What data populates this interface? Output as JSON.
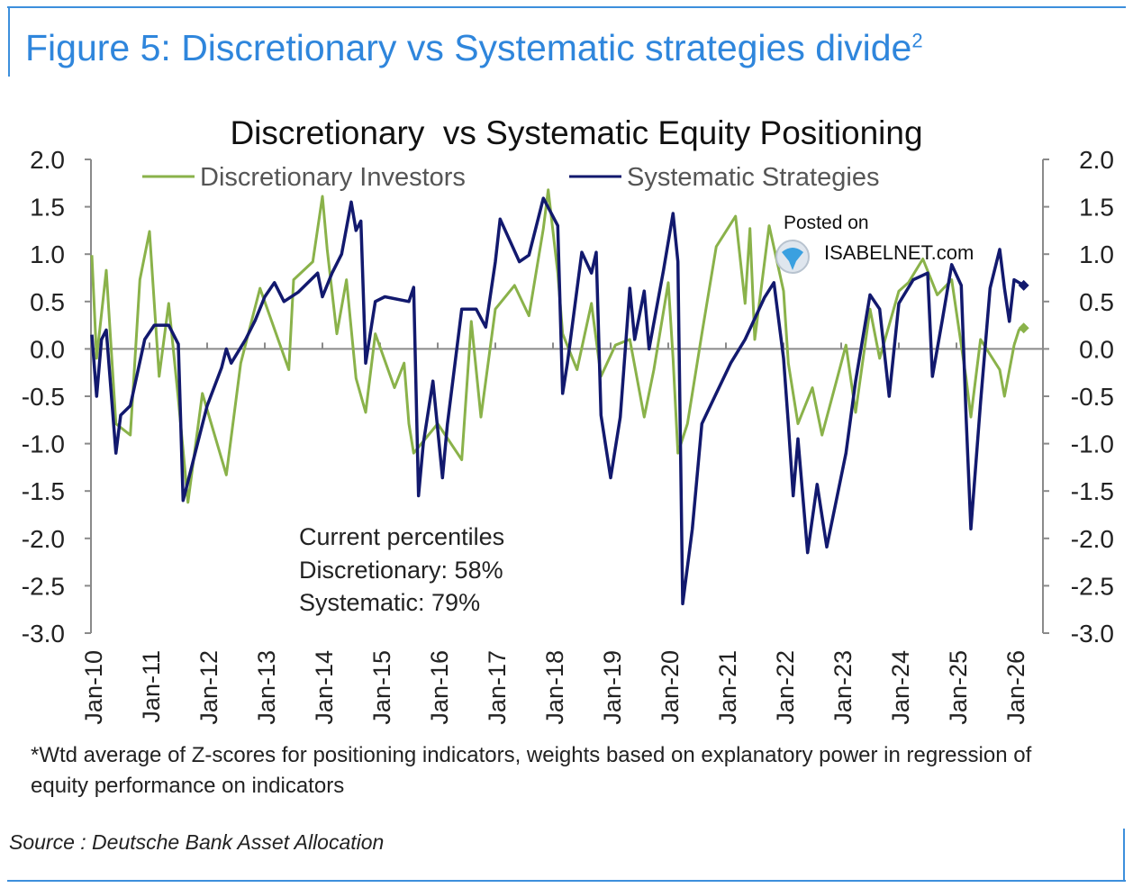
{
  "figure": {
    "title": "Figure 5: Discretionary vs Systematic strategies divide",
    "title_superscript": "2",
    "footnote": "*Wtd average of Z-scores for positioning indicators, weights based on explanatory power in regression of equity performance on indicators",
    "source": "Source : Deutsche Bank Asset Allocation",
    "accent_color": "#2f86dc"
  },
  "watermark": {
    "line1": "Posted on",
    "line2": "ISABELNET.com"
  },
  "chart_data": {
    "type": "line",
    "title": "Discretionary  vs Systematic Equity Positioning",
    "xlabel": "",
    "ylabel": "",
    "ylim": [
      -3.0,
      2.0
    ],
    "y_ticks": [
      "2.0",
      "1.5",
      "1.0",
      "0.5",
      "0.0",
      "-0.5",
      "-1.0",
      "-1.5",
      "-2.0",
      "-2.5",
      "-3.0"
    ],
    "y_axis_both_sides": true,
    "x_ticks": [
      "Jan-10",
      "Jan-11",
      "Jan-12",
      "Jan-13",
      "Jan-14",
      "Jan-15",
      "Jan-16",
      "Jan-17",
      "Jan-18",
      "Jan-19",
      "Jan-20",
      "Jan-21",
      "Jan-22",
      "Jan-23",
      "Jan-24",
      "Jan-25",
      "Jan-26"
    ],
    "grid": false,
    "legend_position": "top",
    "annotation": [
      "Current percentiles",
      "Discretionary: 58%",
      "Systematic: 79%"
    ],
    "series": [
      {
        "name": "Discretionary Investors",
        "color": "#8ab24a",
        "points": [
          [
            "2010-01",
            0.99
          ],
          [
            "2010-02",
            -0.1
          ],
          [
            "2010-04",
            0.83
          ],
          [
            "2010-06",
            -0.79
          ],
          [
            "2010-09",
            -0.91
          ],
          [
            "2010-11",
            0.73
          ],
          [
            "2011-01",
            1.24
          ],
          [
            "2011-03",
            -0.29
          ],
          [
            "2011-05",
            0.48
          ],
          [
            "2011-07",
            -0.53
          ],
          [
            "2011-09",
            -1.62
          ],
          [
            "2011-12",
            -0.47
          ],
          [
            "2012-05",
            -1.33
          ],
          [
            "2012-08",
            -0.15
          ],
          [
            "2012-12",
            0.64
          ],
          [
            "2013-06",
            -0.22
          ],
          [
            "2013-07",
            0.73
          ],
          [
            "2013-11",
            0.92
          ],
          [
            "2014-01",
            1.61
          ],
          [
            "2014-02",
            1.05
          ],
          [
            "2014-04",
            0.16
          ],
          [
            "2014-06",
            0.73
          ],
          [
            "2014-08",
            -0.31
          ],
          [
            "2014-10",
            -0.67
          ],
          [
            "2014-12",
            0.16
          ],
          [
            "2015-04",
            -0.41
          ],
          [
            "2015-06",
            -0.15
          ],
          [
            "2015-07",
            -0.79
          ],
          [
            "2015-08",
            -1.1
          ],
          [
            "2016-01",
            -0.79
          ],
          [
            "2016-06",
            -1.17
          ],
          [
            "2016-08",
            0.29
          ],
          [
            "2016-10",
            -0.72
          ],
          [
            "2017-01",
            0.42
          ],
          [
            "2017-05",
            0.67
          ],
          [
            "2017-08",
            0.35
          ],
          [
            "2017-11",
            1.27
          ],
          [
            "2017-12",
            1.68
          ],
          [
            "2018-02",
            0.8
          ],
          [
            "2018-03",
            0.16
          ],
          [
            "2018-06",
            -0.22
          ],
          [
            "2018-09",
            0.48
          ],
          [
            "2018-11",
            -0.29
          ],
          [
            "2019-02",
            0.04
          ],
          [
            "2019-05",
            0.1
          ],
          [
            "2019-08",
            -0.72
          ],
          [
            "2019-10",
            -0.22
          ],
          [
            "2020-01",
            0.7
          ],
          [
            "2020-02",
            -0.1
          ],
          [
            "2020-03",
            -1.1
          ],
          [
            "2020-05",
            -0.79
          ],
          [
            "2020-08",
            0.16
          ],
          [
            "2020-11",
            1.08
          ],
          [
            "2021-03",
            1.4
          ],
          [
            "2021-05",
            0.48
          ],
          [
            "2021-06",
            1.27
          ],
          [
            "2021-07",
            0.1
          ],
          [
            "2021-10",
            1.3
          ],
          [
            "2022-01",
            0.61
          ],
          [
            "2022-02",
            -0.15
          ],
          [
            "2022-04",
            -0.79
          ],
          [
            "2022-07",
            -0.41
          ],
          [
            "2022-09",
            -0.91
          ],
          [
            "2022-12",
            -0.34
          ],
          [
            "2023-02",
            0.04
          ],
          [
            "2023-04",
            -0.67
          ],
          [
            "2023-07",
            0.42
          ],
          [
            "2023-09",
            -0.1
          ],
          [
            "2024-01",
            0.61
          ],
          [
            "2024-03",
            0.7
          ],
          [
            "2024-06",
            0.95
          ],
          [
            "2024-09",
            0.57
          ],
          [
            "2024-12",
            0.73
          ],
          [
            "2025-03",
            -0.31
          ],
          [
            "2025-04",
            -0.72
          ],
          [
            "2025-06",
            0.1
          ],
          [
            "2025-10",
            -0.22
          ],
          [
            "2025-11",
            -0.5
          ],
          [
            "2026-01",
            0.04
          ],
          [
            "2026-02",
            0.2
          ],
          [
            "2026-03",
            0.22
          ]
        ]
      },
      {
        "name": "Systematic Strategies",
        "color": "#12196e",
        "points": [
          [
            "2010-01",
            0.15
          ],
          [
            "2010-02",
            -0.5
          ],
          [
            "2010-03",
            0.1
          ],
          [
            "2010-04",
            0.2
          ],
          [
            "2010-06",
            -1.1
          ],
          [
            "2010-07",
            -0.7
          ],
          [
            "2010-09",
            -0.6
          ],
          [
            "2010-12",
            0.1
          ],
          [
            "2011-02",
            0.25
          ],
          [
            "2011-05",
            0.25
          ],
          [
            "2011-07",
            0.05
          ],
          [
            "2011-08",
            -1.6
          ],
          [
            "2011-09",
            -1.4
          ],
          [
            "2011-11",
            -1.0
          ],
          [
            "2012-01",
            -0.6
          ],
          [
            "2012-04",
            -0.2
          ],
          [
            "2012-05",
            0.0
          ],
          [
            "2012-06",
            -0.15
          ],
          [
            "2012-09",
            0.1
          ],
          [
            "2012-11",
            0.3
          ],
          [
            "2013-01",
            0.55
          ],
          [
            "2013-03",
            0.7
          ],
          [
            "2013-05",
            0.5
          ],
          [
            "2013-08",
            0.6
          ],
          [
            "2013-12",
            0.8
          ],
          [
            "2014-01",
            0.55
          ],
          [
            "2014-03",
            0.8
          ],
          [
            "2014-05",
            1.0
          ],
          [
            "2014-07",
            1.55
          ],
          [
            "2014-08",
            1.25
          ],
          [
            "2014-09",
            1.35
          ],
          [
            "2014-10",
            -0.15
          ],
          [
            "2014-12",
            0.5
          ],
          [
            "2015-02",
            0.55
          ],
          [
            "2015-07",
            0.5
          ],
          [
            "2015-08",
            0.65
          ],
          [
            "2015-09",
            -1.55
          ],
          [
            "2015-10",
            -1.0
          ],
          [
            "2015-12",
            -0.34
          ],
          [
            "2016-02",
            -1.36
          ],
          [
            "2016-03",
            -0.8
          ],
          [
            "2016-06",
            0.42
          ],
          [
            "2016-09",
            0.42
          ],
          [
            "2016-11",
            0.23
          ],
          [
            "2017-01",
            0.92
          ],
          [
            "2017-02",
            1.37
          ],
          [
            "2017-06",
            0.92
          ],
          [
            "2017-08",
            0.99
          ],
          [
            "2017-11",
            1.59
          ],
          [
            "2018-02",
            1.3
          ],
          [
            "2018-03",
            -0.47
          ],
          [
            "2018-04",
            -0.15
          ],
          [
            "2018-07",
            1.02
          ],
          [
            "2018-09",
            0.8
          ],
          [
            "2018-10",
            1.02
          ],
          [
            "2018-11",
            -0.7
          ],
          [
            "2019-01",
            -1.36
          ],
          [
            "2019-03",
            -0.72
          ],
          [
            "2019-05",
            0.64
          ],
          [
            "2019-06",
            0.1
          ],
          [
            "2019-08",
            0.61
          ],
          [
            "2019-09",
            0.0
          ],
          [
            "2019-12",
            0.83
          ],
          [
            "2020-02",
            1.43
          ],
          [
            "2020-03",
            0.92
          ],
          [
            "2020-04",
            -2.69
          ],
          [
            "2020-06",
            -1.9
          ],
          [
            "2020-08",
            -0.79
          ],
          [
            "2020-11",
            -0.47
          ],
          [
            "2021-02",
            -0.15
          ],
          [
            "2021-05",
            0.1
          ],
          [
            "2021-09",
            0.54
          ],
          [
            "2021-11",
            0.7
          ],
          [
            "2022-01",
            -0.1
          ],
          [
            "2022-02",
            -0.79
          ],
          [
            "2022-03",
            -1.55
          ],
          [
            "2022-04",
            -0.95
          ],
          [
            "2022-06",
            -2.15
          ],
          [
            "2022-08",
            -1.43
          ],
          [
            "2022-10",
            -2.09
          ],
          [
            "2023-02",
            -1.1
          ],
          [
            "2023-04",
            -0.34
          ],
          [
            "2023-07",
            0.57
          ],
          [
            "2023-09",
            0.42
          ],
          [
            "2023-11",
            -0.5
          ],
          [
            "2024-01",
            0.48
          ],
          [
            "2024-04",
            0.73
          ],
          [
            "2024-07",
            0.8
          ],
          [
            "2024-08",
            -0.29
          ],
          [
            "2024-10",
            0.29
          ],
          [
            "2024-12",
            0.89
          ],
          [
            "2025-02",
            0.67
          ],
          [
            "2025-03",
            -0.72
          ],
          [
            "2025-04",
            -1.9
          ],
          [
            "2025-06",
            -0.57
          ],
          [
            "2025-08",
            0.64
          ],
          [
            "2025-10",
            1.05
          ],
          [
            "2025-11",
            0.64
          ],
          [
            "2025-12",
            0.29
          ],
          [
            "2026-01",
            0.73
          ],
          [
            "2026-03",
            0.67
          ]
        ]
      }
    ]
  }
}
